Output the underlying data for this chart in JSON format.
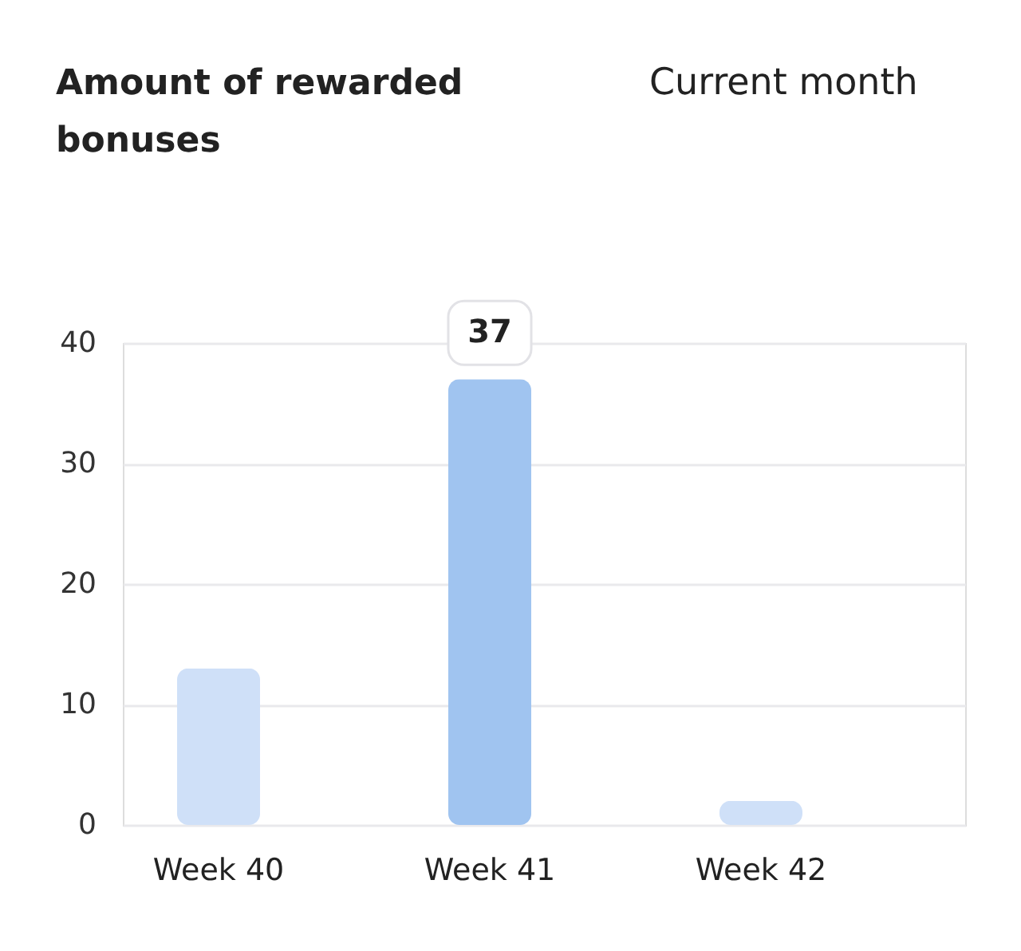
{
  "chart_data": {
    "type": "bar",
    "title": "Amount of rewarded bonuses",
    "annotations": [
      "Current month"
    ],
    "categories": [
      "Week 40",
      "Week 41",
      "Week 42"
    ],
    "values": [
      13,
      37,
      2
    ],
    "colors": [
      "#cfe0f8",
      "#a0c4f0",
      "#cfe0f8"
    ],
    "value_labels": [
      null,
      "37",
      null
    ],
    "ylim": [
      0,
      40
    ],
    "yticks": [
      0,
      10,
      20,
      30,
      40
    ],
    "grid": "y"
  }
}
